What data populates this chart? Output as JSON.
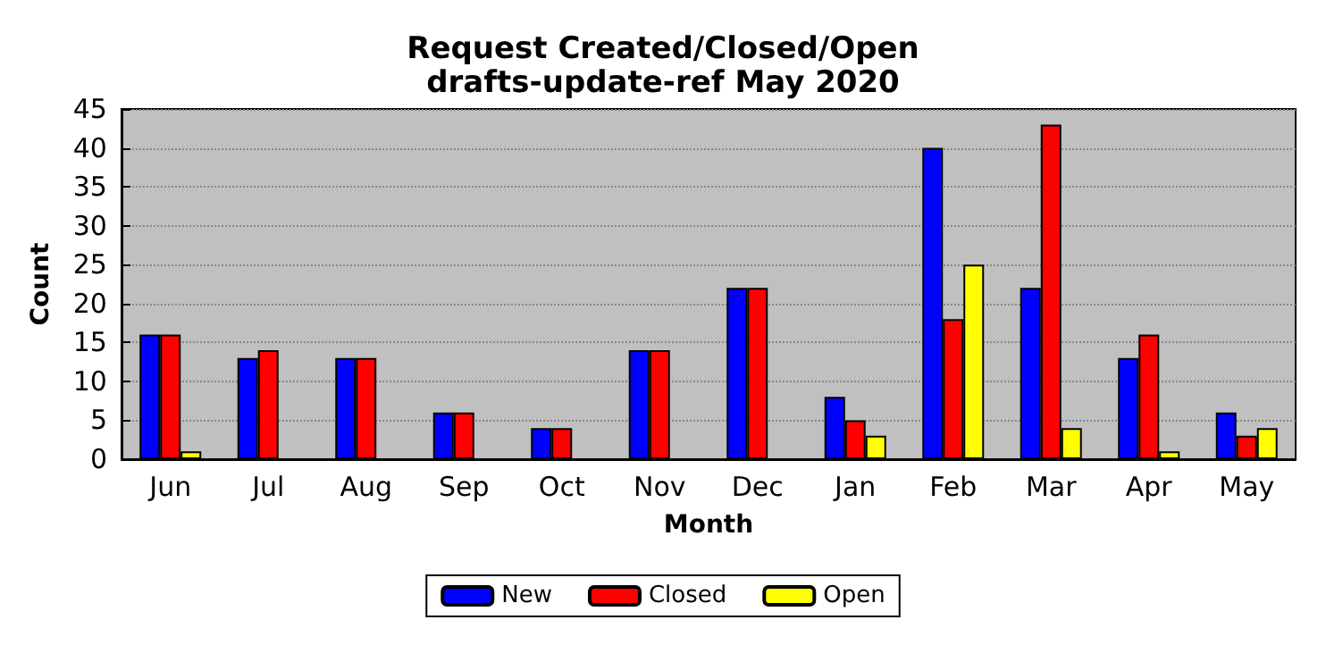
{
  "chart_data": {
    "type": "bar",
    "title": "Request Created/Closed/Open",
    "subtitle": "drafts-update-ref May 2020",
    "xlabel": "Month",
    "ylabel": "Count",
    "categories": [
      "Jun",
      "Jul",
      "Aug",
      "Sep",
      "Oct",
      "Nov",
      "Dec",
      "Jan",
      "Feb",
      "Mar",
      "Apr",
      "May"
    ],
    "series": [
      {
        "name": "New",
        "color": "#0000ff",
        "values": [
          16,
          13,
          13,
          6,
          4,
          14,
          22,
          8,
          40,
          22,
          13,
          6
        ]
      },
      {
        "name": "Closed",
        "color": "#ff0000",
        "values": [
          16,
          14,
          13,
          6,
          4,
          14,
          22,
          5,
          18,
          43,
          16,
          3
        ]
      },
      {
        "name": "Open",
        "color": "#ffff00",
        "values": [
          1,
          0,
          0,
          0,
          0,
          0,
          0,
          3,
          25,
          4,
          1,
          4
        ]
      }
    ],
    "ylim": [
      0,
      45
    ],
    "yticks": [
      0,
      5,
      10,
      15,
      20,
      25,
      30,
      35,
      40,
      45
    ],
    "grid": "y",
    "legend": "bottom"
  }
}
